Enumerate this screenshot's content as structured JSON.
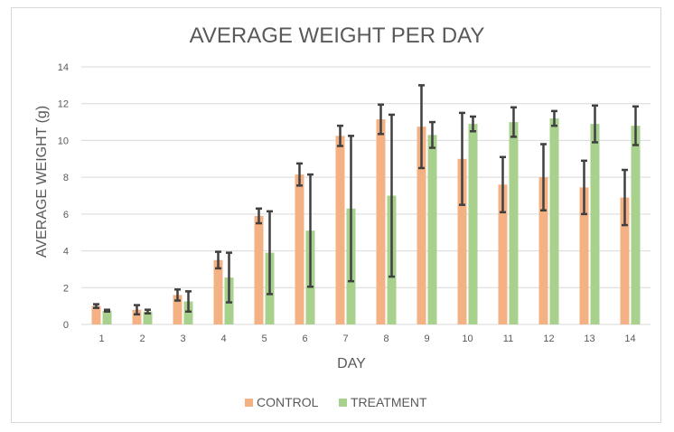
{
  "chart_data": {
    "type": "bar",
    "title": "AVERAGE WEIGHT PER DAY",
    "xlabel": "DAY",
    "ylabel": "AVERAGE WEIGHT (g)",
    "ylim": [
      0,
      14
    ],
    "yticks": [
      "0",
      "2",
      "4",
      "6",
      "8",
      "10",
      "12",
      "14"
    ],
    "categories": [
      "1",
      "2",
      "3",
      "4",
      "5",
      "6",
      "7",
      "8",
      "9",
      "10",
      "11",
      "12",
      "13",
      "14"
    ],
    "grid": true,
    "legend_position": "bottom",
    "series": [
      {
        "name": "CONTROL",
        "color": "#f4b183",
        "values": [
          1.0,
          0.8,
          1.6,
          3.5,
          5.9,
          8.15,
          10.25,
          11.15,
          10.75,
          9.0,
          7.6,
          8.0,
          7.45,
          6.9
        ],
        "errors": [
          0.1,
          0.25,
          0.3,
          0.45,
          0.4,
          0.6,
          0.55,
          0.8,
          2.25,
          2.5,
          1.5,
          1.8,
          1.45,
          1.5
        ]
      },
      {
        "name": "TREATMENT",
        "color": "#a9d18e",
        "values": [
          0.75,
          0.7,
          1.25,
          2.55,
          3.9,
          5.1,
          6.3,
          7.0,
          10.3,
          10.9,
          11.0,
          11.2,
          10.9,
          10.8
        ],
        "errors": [
          0.05,
          0.1,
          0.55,
          1.35,
          2.25,
          3.05,
          3.95,
          4.4,
          0.7,
          0.4,
          0.8,
          0.4,
          1.0,
          1.05
        ]
      }
    ]
  }
}
